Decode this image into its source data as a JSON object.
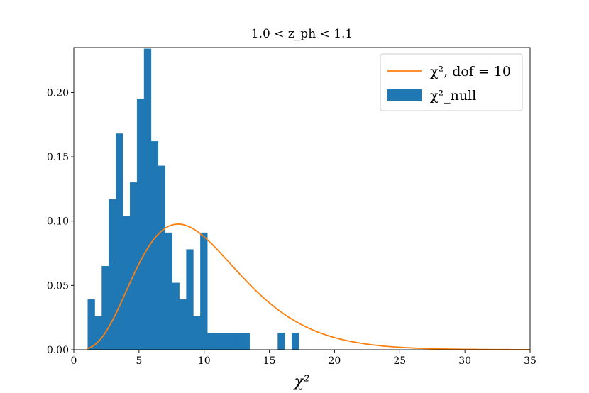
{
  "chart_data": {
    "type": "bar",
    "title": "1.0 < z_ph < 1.1",
    "xlabel": "χ²",
    "ylabel": "",
    "xlim": [
      0,
      35
    ],
    "ylim": [
      0,
      0.235
    ],
    "xticks": [
      0,
      5,
      10,
      15,
      20,
      25,
      30,
      35
    ],
    "yticks": [
      0.0,
      0.05,
      0.1,
      0.15,
      0.2
    ],
    "xtick_labels": [
      "0",
      "5",
      "10",
      "15",
      "20",
      "25",
      "30",
      "35"
    ],
    "ytick_labels": [
      "0.00",
      "0.05",
      "0.10",
      "0.15",
      "0.20"
    ],
    "grid": false,
    "legend_position": "top-right",
    "series": [
      {
        "name": "χ², dof = 10",
        "kind": "line",
        "color": "#ff7f0e",
        "dof": 10,
        "x": [
          1,
          2,
          3,
          4,
          5,
          6,
          7,
          8,
          9,
          10,
          12,
          14,
          16,
          18,
          20,
          22,
          25,
          30,
          35
        ],
        "values": [
          0.0008,
          0.0077,
          0.0251,
          0.0504,
          0.0753,
          0.0917,
          0.0976,
          0.0979,
          0.0918,
          0.0842,
          0.0637,
          0.0437,
          0.0272,
          0.016,
          0.0095,
          0.005,
          0.0019,
          0.0005,
          0.0001
        ]
      },
      {
        "name": "χ²_null",
        "kind": "histogram",
        "color": "#1f77b4",
        "bin_edges": [
          1.07,
          1.61,
          2.15,
          2.69,
          3.23,
          3.77,
          4.31,
          4.85,
          5.39,
          5.93,
          6.47,
          7.01,
          7.55,
          8.09,
          8.63,
          9.17,
          9.71,
          10.25,
          10.79,
          11.33,
          11.87,
          12.41,
          12.95,
          13.49,
          14.03,
          14.57,
          15.11,
          15.65,
          16.19,
          16.73,
          17.27
        ],
        "values": [
          0.039,
          0.026,
          0.065,
          0.117,
          0.168,
          0.104,
          0.13,
          0.195,
          0.234,
          0.162,
          0.143,
          0.091,
          0.052,
          0.039,
          0.078,
          0.026,
          0.091,
          0.013,
          0.013,
          0.013,
          0.013,
          0.013,
          0.013,
          0.0,
          0.0,
          0.0,
          0.0,
          0.013,
          0.0,
          0.013
        ]
      }
    ]
  }
}
